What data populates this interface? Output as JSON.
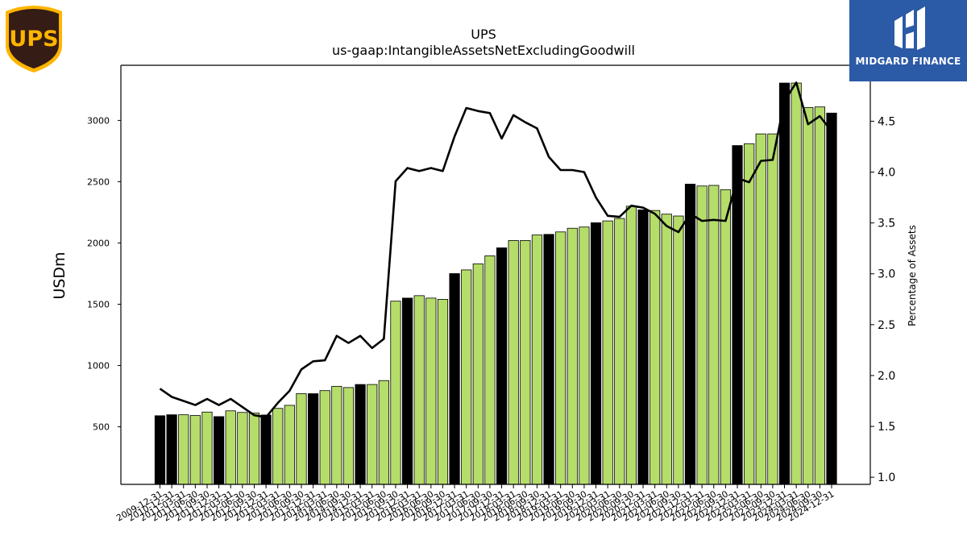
{
  "header": {
    "title": "UPS",
    "subtitle": "us-gaap:IntangibleAssetsNetExcludingGoodwill"
  },
  "logos": {
    "left_logo_text": "UPS",
    "right_logo_text": "MIDGARD FINANCE"
  },
  "colors": {
    "bar_quarter": "#b5dd6a",
    "bar_year_end": "#000000",
    "line": "#000000",
    "ups_brown": "#351c15",
    "ups_gold": "#ffb500",
    "midgard_blue": "#2b5aa6"
  },
  "chart_data": {
    "type": "bar",
    "ylabel": "USDm",
    "y2label": "Percentage of Assets",
    "ylim": [
      30,
      3450
    ],
    "y2lim": [
      0.93,
      5.05
    ],
    "yticks": [
      500,
      1000,
      1500,
      2000,
      2500,
      3000
    ],
    "y2ticks": [
      "1.0",
      "1.5",
      "2.0",
      "2.5",
      "3.0",
      "3.5",
      "4.0",
      "4.5"
    ],
    "categories": [
      "2009-12-31",
      "2010-12-31",
      "2011-03-31",
      "2011-06-30",
      "2011-09-30",
      "2011-12-31",
      "2012-03-31",
      "2012-06-30",
      "2012-09-30",
      "2012-12-31",
      "2013-03-31",
      "2013-06-30",
      "2013-09-30",
      "2013-12-31",
      "2014-03-31",
      "2014-06-30",
      "2014-09-30",
      "2014-12-31",
      "2015-03-31",
      "2015-06-30",
      "2015-09-30",
      "2015-12-31",
      "2016-03-31",
      "2016-06-30",
      "2016-09-30",
      "2016-12-31",
      "2017-03-31",
      "2017-06-30",
      "2017-09-30",
      "2017-12-31",
      "2018-03-31",
      "2018-06-30",
      "2018-09-30",
      "2018-12-31",
      "2019-03-31",
      "2019-06-30",
      "2019-09-30",
      "2019-12-31",
      "2020-03-31",
      "2020-06-30",
      "2020-09-30",
      "2020-12-31",
      "2021-03-31",
      "2021-06-30",
      "2021-09-30",
      "2021-12-31",
      "2022-03-31",
      "2022-06-30",
      "2022-09-30",
      "2022-12-31",
      "2023-03-31",
      "2023-06-30",
      "2023-09-30",
      "2023-12-31",
      "2024-03-31",
      "2024-06-30",
      "2024-09-30",
      "2024-12-31"
    ],
    "series": [
      {
        "type": "bar",
        "axis": "left",
        "values": [
          590,
          598,
          598,
          592,
          620,
          583,
          630,
          617,
          612,
          596,
          650,
          675,
          770,
          770,
          795,
          830,
          820,
          845,
          845,
          877,
          1525,
          1550,
          1570,
          1550,
          1540,
          1750,
          1780,
          1830,
          1895,
          1960,
          2020,
          2020,
          2065,
          2070,
          2090,
          2120,
          2130,
          2165,
          2180,
          2200,
          2300,
          2270,
          2265,
          2235,
          2220,
          2480,
          2465,
          2470,
          2435,
          2795,
          2810,
          2890,
          2890,
          3305,
          3305,
          3105,
          3110,
          3060
        ],
        "year_end": [
          true,
          true,
          false,
          false,
          false,
          true,
          false,
          false,
          false,
          true,
          false,
          false,
          false,
          true,
          false,
          false,
          false,
          true,
          false,
          false,
          false,
          true,
          false,
          false,
          false,
          true,
          false,
          false,
          false,
          true,
          false,
          false,
          false,
          true,
          false,
          false,
          false,
          true,
          false,
          false,
          false,
          true,
          false,
          false,
          false,
          true,
          false,
          false,
          false,
          true,
          false,
          false,
          false,
          true,
          false,
          false,
          false,
          true
        ]
      },
      {
        "type": "line",
        "axis": "right",
        "values": [
          1.87,
          1.79,
          1.75,
          1.71,
          1.77,
          1.71,
          1.77,
          1.69,
          1.61,
          1.59,
          1.73,
          1.85,
          2.06,
          2.14,
          2.15,
          2.39,
          2.32,
          2.39,
          2.27,
          2.36,
          3.91,
          4.04,
          4.01,
          4.04,
          4.01,
          4.35,
          4.63,
          4.6,
          4.58,
          4.33,
          4.56,
          4.49,
          4.43,
          4.15,
          4.02,
          4.02,
          4.0,
          3.75,
          3.57,
          3.56,
          3.67,
          3.65,
          3.59,
          3.47,
          3.41,
          3.59,
          3.52,
          3.53,
          3.52,
          3.94,
          3.9,
          4.11,
          4.12,
          4.7,
          4.88,
          4.47,
          4.55,
          4.4
        ]
      }
    ]
  }
}
